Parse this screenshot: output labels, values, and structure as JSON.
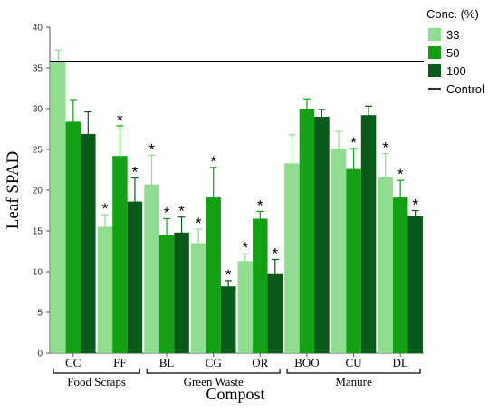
{
  "chart_data": {
    "type": "bar",
    "ylabel": "Leaf SPAD",
    "xlabel": "Compost",
    "ylim": [
      0,
      40
    ],
    "yticks": [
      0,
      5,
      10,
      15,
      20,
      25,
      30,
      35,
      40
    ],
    "categories": [
      "CC",
      "FF",
      "BL",
      "CG",
      "OR",
      "BOO",
      "CU",
      "DL"
    ],
    "groups": [
      {
        "label": "Food Scraps",
        "categories": [
          "CC",
          "FF"
        ]
      },
      {
        "label": "Green Waste",
        "categories": [
          "BL",
          "CG",
          "OR"
        ]
      },
      {
        "label": "Manure",
        "categories": [
          "BOO",
          "CU",
          "DL"
        ]
      }
    ],
    "legend_title": "Conc. (%)",
    "legend_placement": "top-right outside",
    "series": [
      {
        "name": "33",
        "color": "#90dc90",
        "values": [
          35.7,
          15.5,
          20.7,
          13.5,
          11.3,
          23.3,
          25.1,
          21.6
        ],
        "errors": [
          1.5,
          1.5,
          3.6,
          1.7,
          0.9,
          3.5,
          2.1,
          2.9
        ],
        "significant": [
          false,
          true,
          true,
          true,
          true,
          false,
          false,
          true
        ]
      },
      {
        "name": "50",
        "color": "#14a014",
        "values": [
          28.4,
          24.2,
          14.5,
          19.1,
          16.5,
          30.0,
          22.6,
          19.1
        ],
        "errors": [
          2.7,
          3.7,
          2.0,
          3.7,
          0.9,
          1.2,
          2.5,
          2.1
        ],
        "significant": [
          false,
          true,
          true,
          true,
          true,
          false,
          true,
          true
        ]
      },
      {
        "name": "100",
        "color": "#0a5a1a",
        "values": [
          26.9,
          18.6,
          14.8,
          8.2,
          9.7,
          29.0,
          29.2,
          16.8
        ],
        "errors": [
          2.7,
          2.9,
          1.9,
          0.7,
          1.8,
          0.9,
          1.1,
          0.7
        ],
        "significant": [
          false,
          true,
          true,
          true,
          true,
          false,
          false,
          true
        ]
      }
    ],
    "reference_line": {
      "label": "Control",
      "value": 35.8
    },
    "significance_marker": "*",
    "grid": false
  }
}
